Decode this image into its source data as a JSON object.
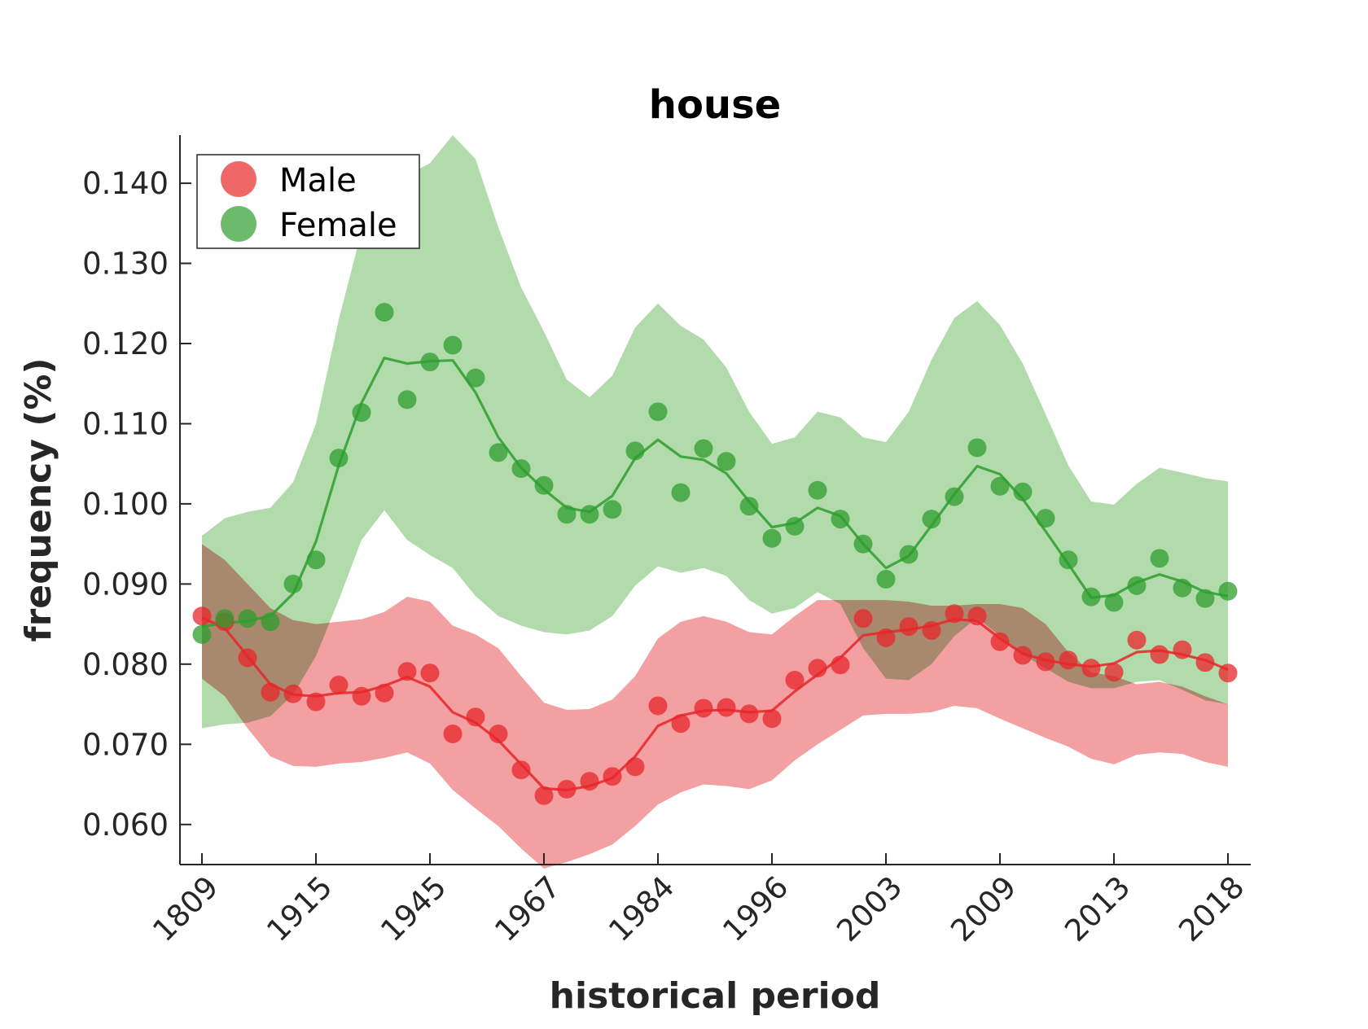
{
  "chart_data": {
    "type": "line",
    "title": "house",
    "xlabel": "historical period",
    "ylabel": "frequency (%)",
    "x_tick_labels": [
      "1809",
      "1915",
      "1945",
      "1967",
      "1984",
      "1996",
      "2003",
      "2009",
      "2013",
      "2018"
    ],
    "y_ticks": [
      0.06,
      0.07,
      0.08,
      0.09,
      0.1,
      0.11,
      0.12,
      0.13,
      0.14
    ],
    "y_tick_labels": [
      "0.060",
      "0.070",
      "0.080",
      "0.090",
      "0.100",
      "0.110",
      "0.120",
      "0.130",
      "0.140"
    ],
    "ylim": [
      0.055,
      0.146
    ],
    "num_points": 46,
    "grid": false,
    "legend_position": "top-left",
    "series": [
      {
        "name": "Male",
        "color": "#e8262a",
        "fill_color": "#f2a0a2",
        "points": [
          0.086,
          0.0853,
          0.0808,
          0.0765,
          0.0763,
          0.0753,
          0.0774,
          0.076,
          0.0764,
          0.0791,
          0.0789,
          0.0713,
          0.0734,
          0.0713,
          0.0668,
          0.0636,
          0.0644,
          0.0654,
          0.066,
          0.0672,
          0.0748,
          0.0726,
          0.0745,
          0.0746,
          0.0738,
          0.0732,
          0.078,
          0.0795,
          0.0799,
          0.0857,
          0.0833,
          0.0847,
          0.0842,
          0.0863,
          0.086,
          0.0828,
          0.0811,
          0.0803,
          0.0805,
          0.0795,
          0.079,
          0.083,
          0.0812,
          0.0818,
          0.0802,
          0.0789
        ],
        "smoothed": [
          0.0858,
          0.0845,
          0.081,
          0.0775,
          0.0762,
          0.076,
          0.0764,
          0.0765,
          0.0773,
          0.0784,
          0.0772,
          0.074,
          0.0727,
          0.0705,
          0.0675,
          0.0645,
          0.0643,
          0.0648,
          0.0658,
          0.0685,
          0.0723,
          0.0736,
          0.0742,
          0.0743,
          0.074,
          0.0742,
          0.0766,
          0.0787,
          0.0808,
          0.0836,
          0.084,
          0.0843,
          0.0848,
          0.0856,
          0.0854,
          0.0832,
          0.0813,
          0.0805,
          0.08,
          0.0797,
          0.0801,
          0.0815,
          0.0817,
          0.0812,
          0.0805,
          0.0793
        ],
        "upper": [
          0.095,
          0.093,
          0.09,
          0.087,
          0.0855,
          0.085,
          0.0853,
          0.0856,
          0.0865,
          0.0884,
          0.0878,
          0.0848,
          0.0837,
          0.082,
          0.0785,
          0.0752,
          0.0743,
          0.0744,
          0.0756,
          0.0785,
          0.0832,
          0.0853,
          0.086,
          0.0853,
          0.084,
          0.0837,
          0.086,
          0.088,
          0.088,
          0.088,
          0.088,
          0.0878,
          0.0873,
          0.0873,
          0.0875,
          0.0875,
          0.087,
          0.085,
          0.0815,
          0.079,
          0.0785,
          0.0775,
          0.0778,
          0.0772,
          0.076,
          0.075
        ],
        "lower": [
          0.0782,
          0.076,
          0.072,
          0.0685,
          0.0673,
          0.0672,
          0.0676,
          0.0678,
          0.0683,
          0.069,
          0.0676,
          0.0643,
          0.062,
          0.0598,
          0.057,
          0.0545,
          0.0553,
          0.0563,
          0.0575,
          0.0598,
          0.0625,
          0.064,
          0.065,
          0.0648,
          0.0644,
          0.0655,
          0.068,
          0.07,
          0.0718,
          0.0736,
          0.0738,
          0.0738,
          0.074,
          0.0748,
          0.0745,
          0.0732,
          0.072,
          0.0708,
          0.0697,
          0.0682,
          0.0675,
          0.0687,
          0.069,
          0.0688,
          0.0678,
          0.0672
        ]
      },
      {
        "name": "Female",
        "color": "#2e9e2e",
        "fill_color": "#aed9a6",
        "points": [
          0.0837,
          0.0857,
          0.0857,
          0.0853,
          0.09,
          0.093,
          0.1057,
          0.1114,
          0.1239,
          0.113,
          0.1177,
          0.1198,
          0.1157,
          0.1064,
          0.1044,
          0.1023,
          0.0987,
          0.0987,
          0.0993,
          0.1066,
          0.1115,
          0.1014,
          0.1069,
          0.1053,
          0.0997,
          0.0957,
          0.0972,
          0.1017,
          0.0981,
          0.095,
          0.0906,
          0.0937,
          0.0981,
          0.1009,
          0.107,
          0.1022,
          0.1015,
          0.0982,
          0.093,
          0.0884,
          0.0877,
          0.0898,
          0.0932,
          0.0895,
          0.0882,
          0.0891
        ],
        "smoothed": [
          0.0847,
          0.0851,
          0.0854,
          0.086,
          0.0888,
          0.0953,
          0.1048,
          0.1126,
          0.1182,
          0.1175,
          0.1178,
          0.1179,
          0.1139,
          0.1083,
          0.1045,
          0.1018,
          0.0995,
          0.099,
          0.101,
          0.1057,
          0.108,
          0.1059,
          0.1055,
          0.1038,
          0.1003,
          0.0971,
          0.0976,
          0.0995,
          0.0985,
          0.095,
          0.092,
          0.0935,
          0.0973,
          0.1012,
          0.1047,
          0.1037,
          0.1006,
          0.0966,
          0.0925,
          0.0883,
          0.0886,
          0.0902,
          0.0912,
          0.0903,
          0.089,
          0.0885
        ],
        "upper": [
          0.096,
          0.0982,
          0.099,
          0.0995,
          0.1027,
          0.11,
          0.123,
          0.134,
          0.142,
          0.141,
          0.1425,
          0.146,
          0.143,
          0.1345,
          0.127,
          0.1215,
          0.1155,
          0.1133,
          0.116,
          0.122,
          0.125,
          0.1222,
          0.1205,
          0.117,
          0.1115,
          0.1075,
          0.1083,
          0.1115,
          0.1108,
          0.1083,
          0.1077,
          0.1115,
          0.118,
          0.1232,
          0.1253,
          0.1223,
          0.1175,
          0.1112,
          0.1048,
          0.1003,
          0.0999,
          0.1025,
          0.1045,
          0.1039,
          0.1032,
          0.1028
        ],
        "lower": [
          0.072,
          0.0725,
          0.0727,
          0.0735,
          0.0762,
          0.081,
          0.088,
          0.0955,
          0.0992,
          0.0955,
          0.0936,
          0.092,
          0.0885,
          0.086,
          0.0848,
          0.084,
          0.0837,
          0.0842,
          0.086,
          0.0898,
          0.0922,
          0.0914,
          0.092,
          0.091,
          0.088,
          0.0863,
          0.087,
          0.089,
          0.0875,
          0.082,
          0.0782,
          0.078,
          0.08,
          0.0835,
          0.0858,
          0.0835,
          0.0812,
          0.0795,
          0.0778,
          0.077,
          0.077,
          0.0778,
          0.078,
          0.0768,
          0.0755,
          0.075
        ]
      }
    ]
  }
}
